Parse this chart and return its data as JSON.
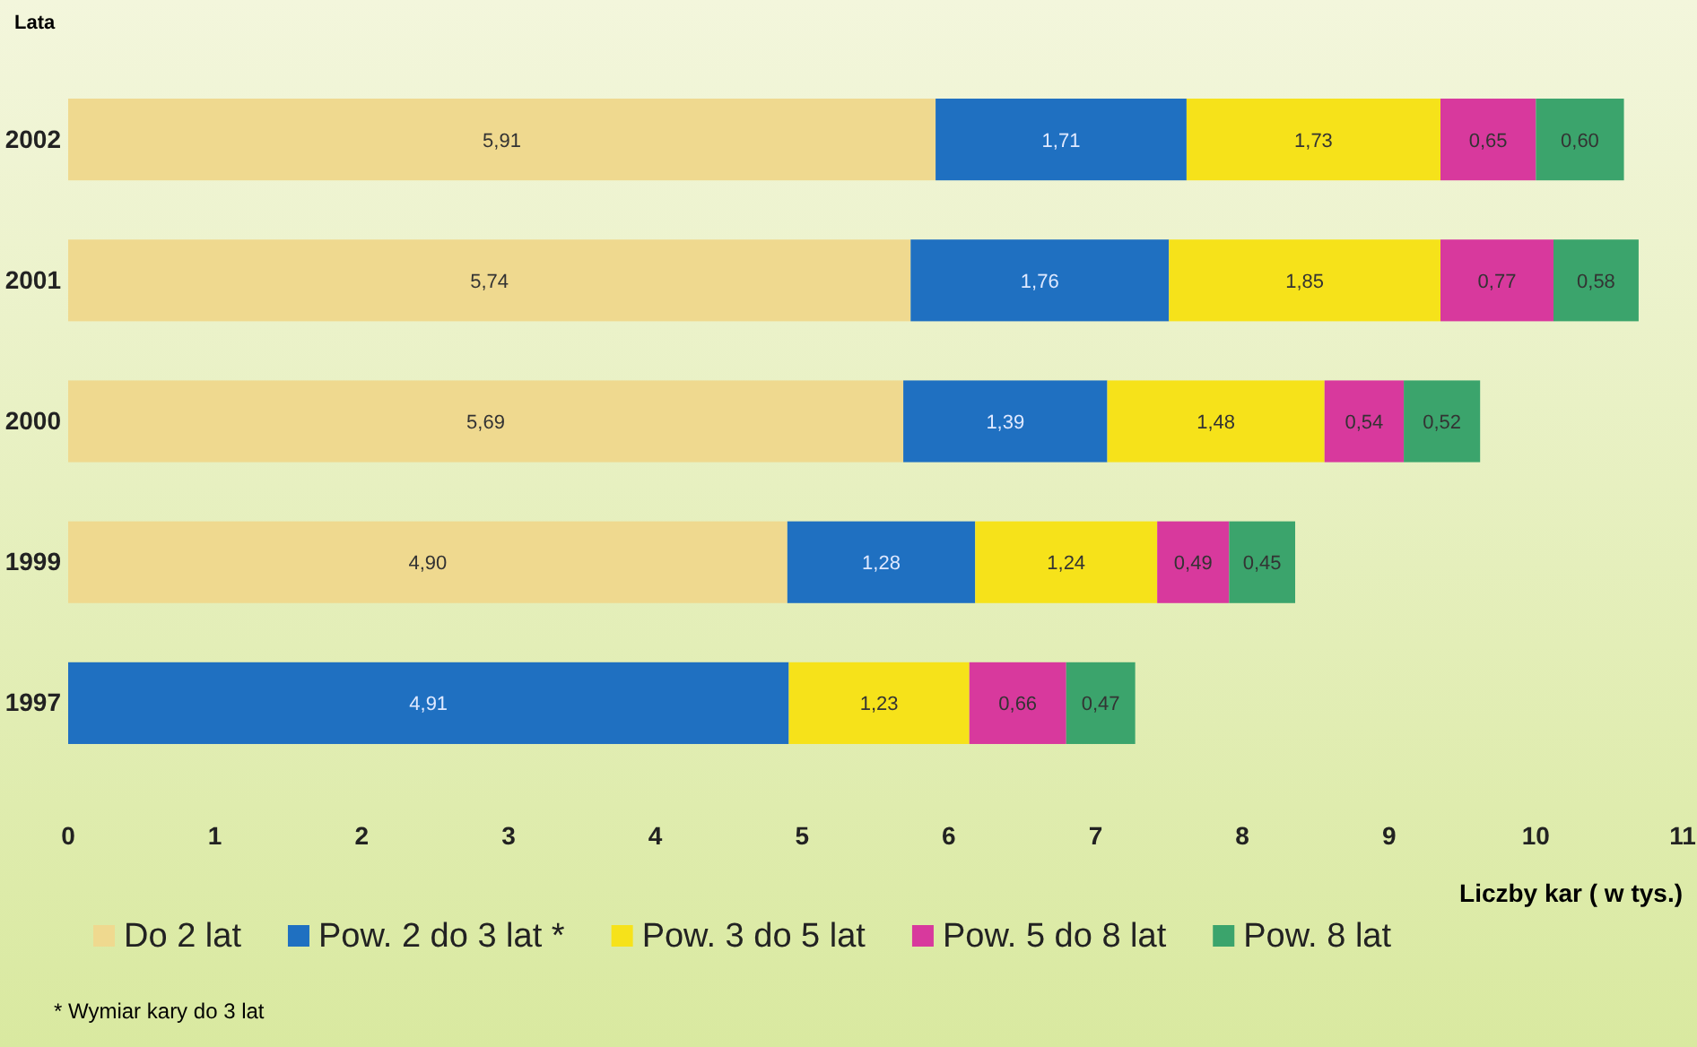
{
  "chart_data": {
    "type": "bar",
    "orientation": "horizontal",
    "stacked": true,
    "categories": [
      "2002",
      "2001",
      "2000",
      "1999",
      "1997"
    ],
    "ylabel": "Lata",
    "xlabel": "Liczby kar ( w tys.)",
    "xlim": [
      0,
      11
    ],
    "xticks": [
      0,
      1,
      2,
      3,
      4,
      5,
      6,
      7,
      8,
      9,
      10,
      11
    ],
    "legend": "bottom",
    "series": [
      {
        "name": "Do 2 lat",
        "color": "#efd98f",
        "values": [
          5.91,
          5.74,
          5.69,
          4.9,
          null
        ],
        "value_labels": [
          "5,91",
          "5,74",
          "5,69",
          "4,90",
          null
        ]
      },
      {
        "name": "Pow. 2 do 3 lat *",
        "color": "#1f70c1",
        "values": [
          1.71,
          1.76,
          1.39,
          1.28,
          4.91
        ],
        "value_labels": [
          "1,71",
          "1,76",
          "1,39",
          "1,28",
          "4,91"
        ]
      },
      {
        "name": "Pow. 3 do 5 lat",
        "color": "#f6e21a",
        "values": [
          1.73,
          1.85,
          1.48,
          1.24,
          1.23
        ],
        "value_labels": [
          "1,73",
          "1,85",
          "1,48",
          "1,24",
          "1,23"
        ]
      },
      {
        "name": "Pow. 5 do 8 lat",
        "color": "#d8399d",
        "values": [
          0.65,
          0.77,
          0.54,
          0.49,
          0.66
        ],
        "value_labels": [
          "0,65",
          "0,77",
          "0,54",
          "0,49",
          "0,66"
        ]
      },
      {
        "name": "Pow. 8 lat",
        "color": "#3ba46c",
        "values": [
          0.6,
          0.58,
          0.52,
          0.45,
          0.47
        ],
        "value_labels": [
          "0,60",
          "0,58",
          "0,52",
          "0,45",
          "0,47"
        ]
      }
    ],
    "annotations": [
      "* Wymiar kary do 3 lat"
    ]
  }
}
